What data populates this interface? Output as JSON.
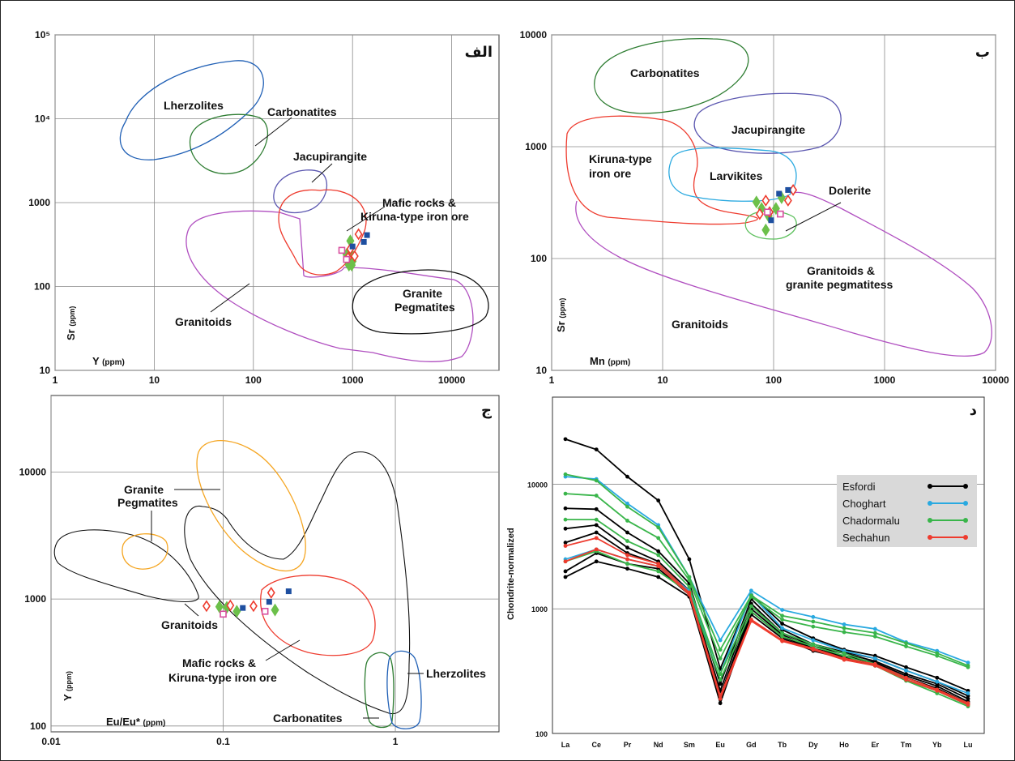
{
  "panels": {
    "a": {
      "letter": "الف",
      "xlabel": "Y",
      "xunit": "(ppm)",
      "ylabel": "Sr",
      "yunit": "(ppm)"
    },
    "b": {
      "letter": "ب",
      "xlabel": "Mn",
      "xunit": "(ppm)",
      "ylabel": "Sr",
      "yunit": "(ppm)"
    },
    "c": {
      "letter": "ج",
      "xlabel": "Eu/Eu*",
      "xunit": "(ppm)",
      "ylabel": "Y",
      "yunit": "(ppm)"
    },
    "d": {
      "letter": "د",
      "ylabel": "Chondrite-normalized"
    }
  },
  "colors": {
    "esfordi": "#000000",
    "choghart": "#29a9e0",
    "chadormalu": "#39b54a",
    "sechahun": "#ee3b2e",
    "lherzolites": "#1f5fb5",
    "carbonatites": "#2e7d32",
    "jacupirangite": "#5b57b0",
    "mafic": "#ee3b2e",
    "granitoids": "#b04fc0",
    "pegmatites": "#111111",
    "larvikites": "#29a9e0",
    "dolerite": "#5cc05c",
    "pegmatitesC": "#f5a623",
    "marker_diamond_green": "#6cc04a",
    "marker_diamond_red": "#ee3b2e",
    "marker_square_blue": "#1e4fa0",
    "marker_square_pink": "#d84f9f"
  },
  "fields": {
    "a": {
      "lherzolites": "Lherzolites",
      "carbonatites": "Carbonatites",
      "jacupirangite": "Jacupirangite",
      "mafic": [
        "Mafic rocks &",
        "Kiruna-type iron ore"
      ],
      "granite_pegmatites": [
        "Granite",
        "Pegmatites"
      ],
      "granitoids": "Granitoids"
    },
    "b": {
      "carbonatites": "Carbonatites",
      "jacupirangite": "Jacupirangite",
      "kiruna": [
        "Kiruna-type",
        "iron ore"
      ],
      "larvikites": "Larvikites",
      "dolerite": "Dolerite",
      "granitoids_pegmatites": [
        "Granitoids &",
        "granite pegmatitess"
      ],
      "granitoids": "Granitoids"
    },
    "c": {
      "granite_pegmatites": [
        "Granite",
        "Pegmatites"
      ],
      "granitoids": "Granitoids",
      "mafic": [
        "Mafic rocks &",
        "Kiruna-type iron ore"
      ],
      "lherzolites": "Lherzolites",
      "carbonatites": "Carbonatites"
    }
  },
  "legend": {
    "esfordi": "Esfordi",
    "choghart": "Choghart",
    "chadormalu": "Chadormalu",
    "sechahun": "Sechahun"
  },
  "chart_data": [
    {
      "type": "scatter",
      "panel": "a",
      "xlabel": "Y (ppm)",
      "ylabel": "Sr (ppm)",
      "xscale": "log",
      "yscale": "log",
      "xlim": [
        1,
        30000
      ],
      "ylim": [
        10,
        100000
      ],
      "xticks": [
        "1",
        "10",
        "100",
        "1000",
        "10000"
      ],
      "yticks": [
        "10",
        "100",
        "1000",
        "10⁴",
        "10⁵"
      ],
      "grid": true,
      "points": {
        "green_diamond": [
          [
            950,
            350
          ],
          [
            880,
            210
          ],
          [
            960,
            250
          ],
          [
            920,
            180
          ],
          [
            1000,
            200
          ],
          [
            870,
            240
          ],
          [
            980,
            180
          ]
        ],
        "red_diamond": [
          [
            1150,
            420
          ],
          [
            1050,
            230
          ],
          [
            900,
            220
          ],
          [
            950,
            280
          ]
        ],
        "blue_square": [
          [
            1400,
            410
          ],
          [
            1300,
            340
          ],
          [
            1000,
            300
          ]
        ],
        "pink_square": [
          [
            780,
            270
          ],
          [
            870,
            210
          ]
        ]
      }
    },
    {
      "type": "scatter",
      "panel": "b",
      "xlabel": "Mn (ppm)",
      "ylabel": "Sr (ppm)",
      "xscale": "log",
      "yscale": "log",
      "xlim": [
        1,
        10000
      ],
      "ylim": [
        10,
        10000
      ],
      "xticks": [
        "1",
        "10",
        "100",
        "1000",
        "10000"
      ],
      "yticks": [
        "10",
        "100",
        "1000",
        "10000"
      ],
      "grid": true,
      "points": {
        "green_diamond": [
          [
            70,
            320
          ],
          [
            78,
            280
          ],
          [
            85,
            180
          ],
          [
            90,
            240
          ],
          [
            105,
            280
          ],
          [
            118,
            350
          ]
        ],
        "red_diamond": [
          [
            75,
            250
          ],
          [
            85,
            330
          ],
          [
            92,
            260
          ],
          [
            135,
            330
          ],
          [
            150,
            410
          ]
        ],
        "blue_square": [
          [
            112,
            380
          ],
          [
            135,
            410
          ],
          [
            95,
            220
          ]
        ],
        "pink_square": [
          [
            88,
            260
          ],
          [
            115,
            250
          ]
        ]
      }
    },
    {
      "type": "scatter",
      "panel": "c",
      "xlabel": "Eu/Eu* (ppm)",
      "ylabel": "Y (ppm)",
      "xscale": "log",
      "yscale": "log",
      "xlim": [
        0.01,
        4
      ],
      "ylim": [
        90,
        40000
      ],
      "xticks": [
        "0.01",
        "0.1",
        "1"
      ],
      "yticks": [
        "100",
        "1000",
        "10000"
      ],
      "grid": true,
      "points": {
        "green_diamond": [
          [
            0.095,
            870
          ],
          [
            0.105,
            860
          ],
          [
            0.12,
            800
          ],
          [
            0.2,
            820
          ]
        ],
        "red_diamond": [
          [
            0.08,
            880
          ],
          [
            0.11,
            890
          ],
          [
            0.15,
            880
          ],
          [
            0.19,
            1120
          ]
        ],
        "blue_square": [
          [
            0.13,
            850
          ],
          [
            0.185,
            950
          ],
          [
            0.24,
            1150
          ]
        ],
        "pink_square": [
          [
            0.1,
            760
          ],
          [
            0.175,
            800
          ]
        ]
      }
    },
    {
      "type": "line",
      "panel": "d",
      "ylabel": "Chondrite-normalized",
      "yscale": "log",
      "ylim": [
        100,
        50000
      ],
      "yticks": [
        "100",
        "1000",
        "10000"
      ],
      "categories": [
        "La",
        "Ce",
        "Pr",
        "Nd",
        "Sm",
        "Eu",
        "Gd",
        "Tb",
        "Dy",
        "Ho",
        "Er",
        "Tm",
        "Yb",
        "Lu"
      ],
      "grid": true,
      "legend": "top-right",
      "series": [
        {
          "name": "Esfordi",
          "group": "esfordi",
          "values": [
            23000,
            19000,
            11500,
            7400,
            2500,
            330,
            1300,
            760,
            580,
            470,
            420,
            340,
            280,
            220
          ]
        },
        {
          "name": "Esfordi",
          "group": "esfordi",
          "values": [
            6400,
            6300,
            4100,
            2900,
            1600,
            250,
            1200,
            680,
            520,
            450,
            400,
            320,
            260,
            200
          ]
        },
        {
          "name": "Esfordi",
          "group": "esfordi",
          "values": [
            4400,
            4700,
            3100,
            2400,
            1400,
            220,
            1100,
            640,
            500,
            440,
            380,
            300,
            250,
            190
          ]
        },
        {
          "name": "Esfordi",
          "group": "esfordi",
          "values": [
            3400,
            4100,
            2800,
            2300,
            1350,
            200,
            1000,
            620,
            480,
            420,
            370,
            290,
            240,
            180
          ]
        },
        {
          "name": "Esfordi",
          "group": "esfordi",
          "values": [
            2000,
            2800,
            2300,
            2100,
            1300,
            190,
            950,
            600,
            470,
            410,
            360,
            280,
            230,
            175
          ]
        },
        {
          "name": "Esfordi",
          "group": "esfordi",
          "values": [
            1800,
            2400,
            2100,
            1800,
            1250,
            175,
            900,
            580,
            460,
            400,
            350,
            270,
            220,
            170
          ]
        },
        {
          "name": "Choghart",
          "group": "choghart",
          "values": [
            11500,
            11000,
            7000,
            4700,
            1800,
            560,
            1400,
            980,
            860,
            750,
            690,
            540,
            460,
            370
          ]
        },
        {
          "name": "Choghart",
          "group": "choghart",
          "values": [
            2500,
            3000,
            2500,
            2200,
            1400,
            300,
            1300,
            700,
            560,
            460,
            400,
            320,
            260,
            210
          ]
        },
        {
          "name": "Chadormalu",
          "group": "chadormalu",
          "values": [
            12000,
            10700,
            6600,
            4500,
            1800,
            470,
            1280,
            880,
            790,
            700,
            640,
            530,
            440,
            350
          ]
        },
        {
          "name": "Chadormalu",
          "group": "chadormalu",
          "values": [
            8400,
            8100,
            5100,
            3700,
            1700,
            400,
            1250,
            820,
            720,
            650,
            600,
            500,
            420,
            340
          ]
        },
        {
          "name": "Chadormalu",
          "group": "chadormalu",
          "values": [
            5200,
            5200,
            3500,
            2700,
            1500,
            300,
            1050,
            640,
            520,
            440,
            360,
            270,
            220,
            170
          ]
        },
        {
          "name": "Chadormalu",
          "group": "chadormalu",
          "values": [
            2400,
            2900,
            2300,
            2000,
            1350,
            270,
            950,
            600,
            500,
            420,
            350,
            265,
            210,
            165
          ]
        },
        {
          "name": "Sechahun",
          "group": "sechahun",
          "values": [
            3200,
            3700,
            2700,
            2300,
            1350,
            200,
            820,
            560,
            480,
            400,
            360,
            280,
            225,
            175
          ]
        },
        {
          "name": "Sechahun",
          "group": "sechahun",
          "values": [
            2400,
            3000,
            2500,
            2200,
            1300,
            190,
            800,
            550,
            470,
            390,
            350,
            270,
            220,
            170
          ]
        }
      ]
    }
  ]
}
